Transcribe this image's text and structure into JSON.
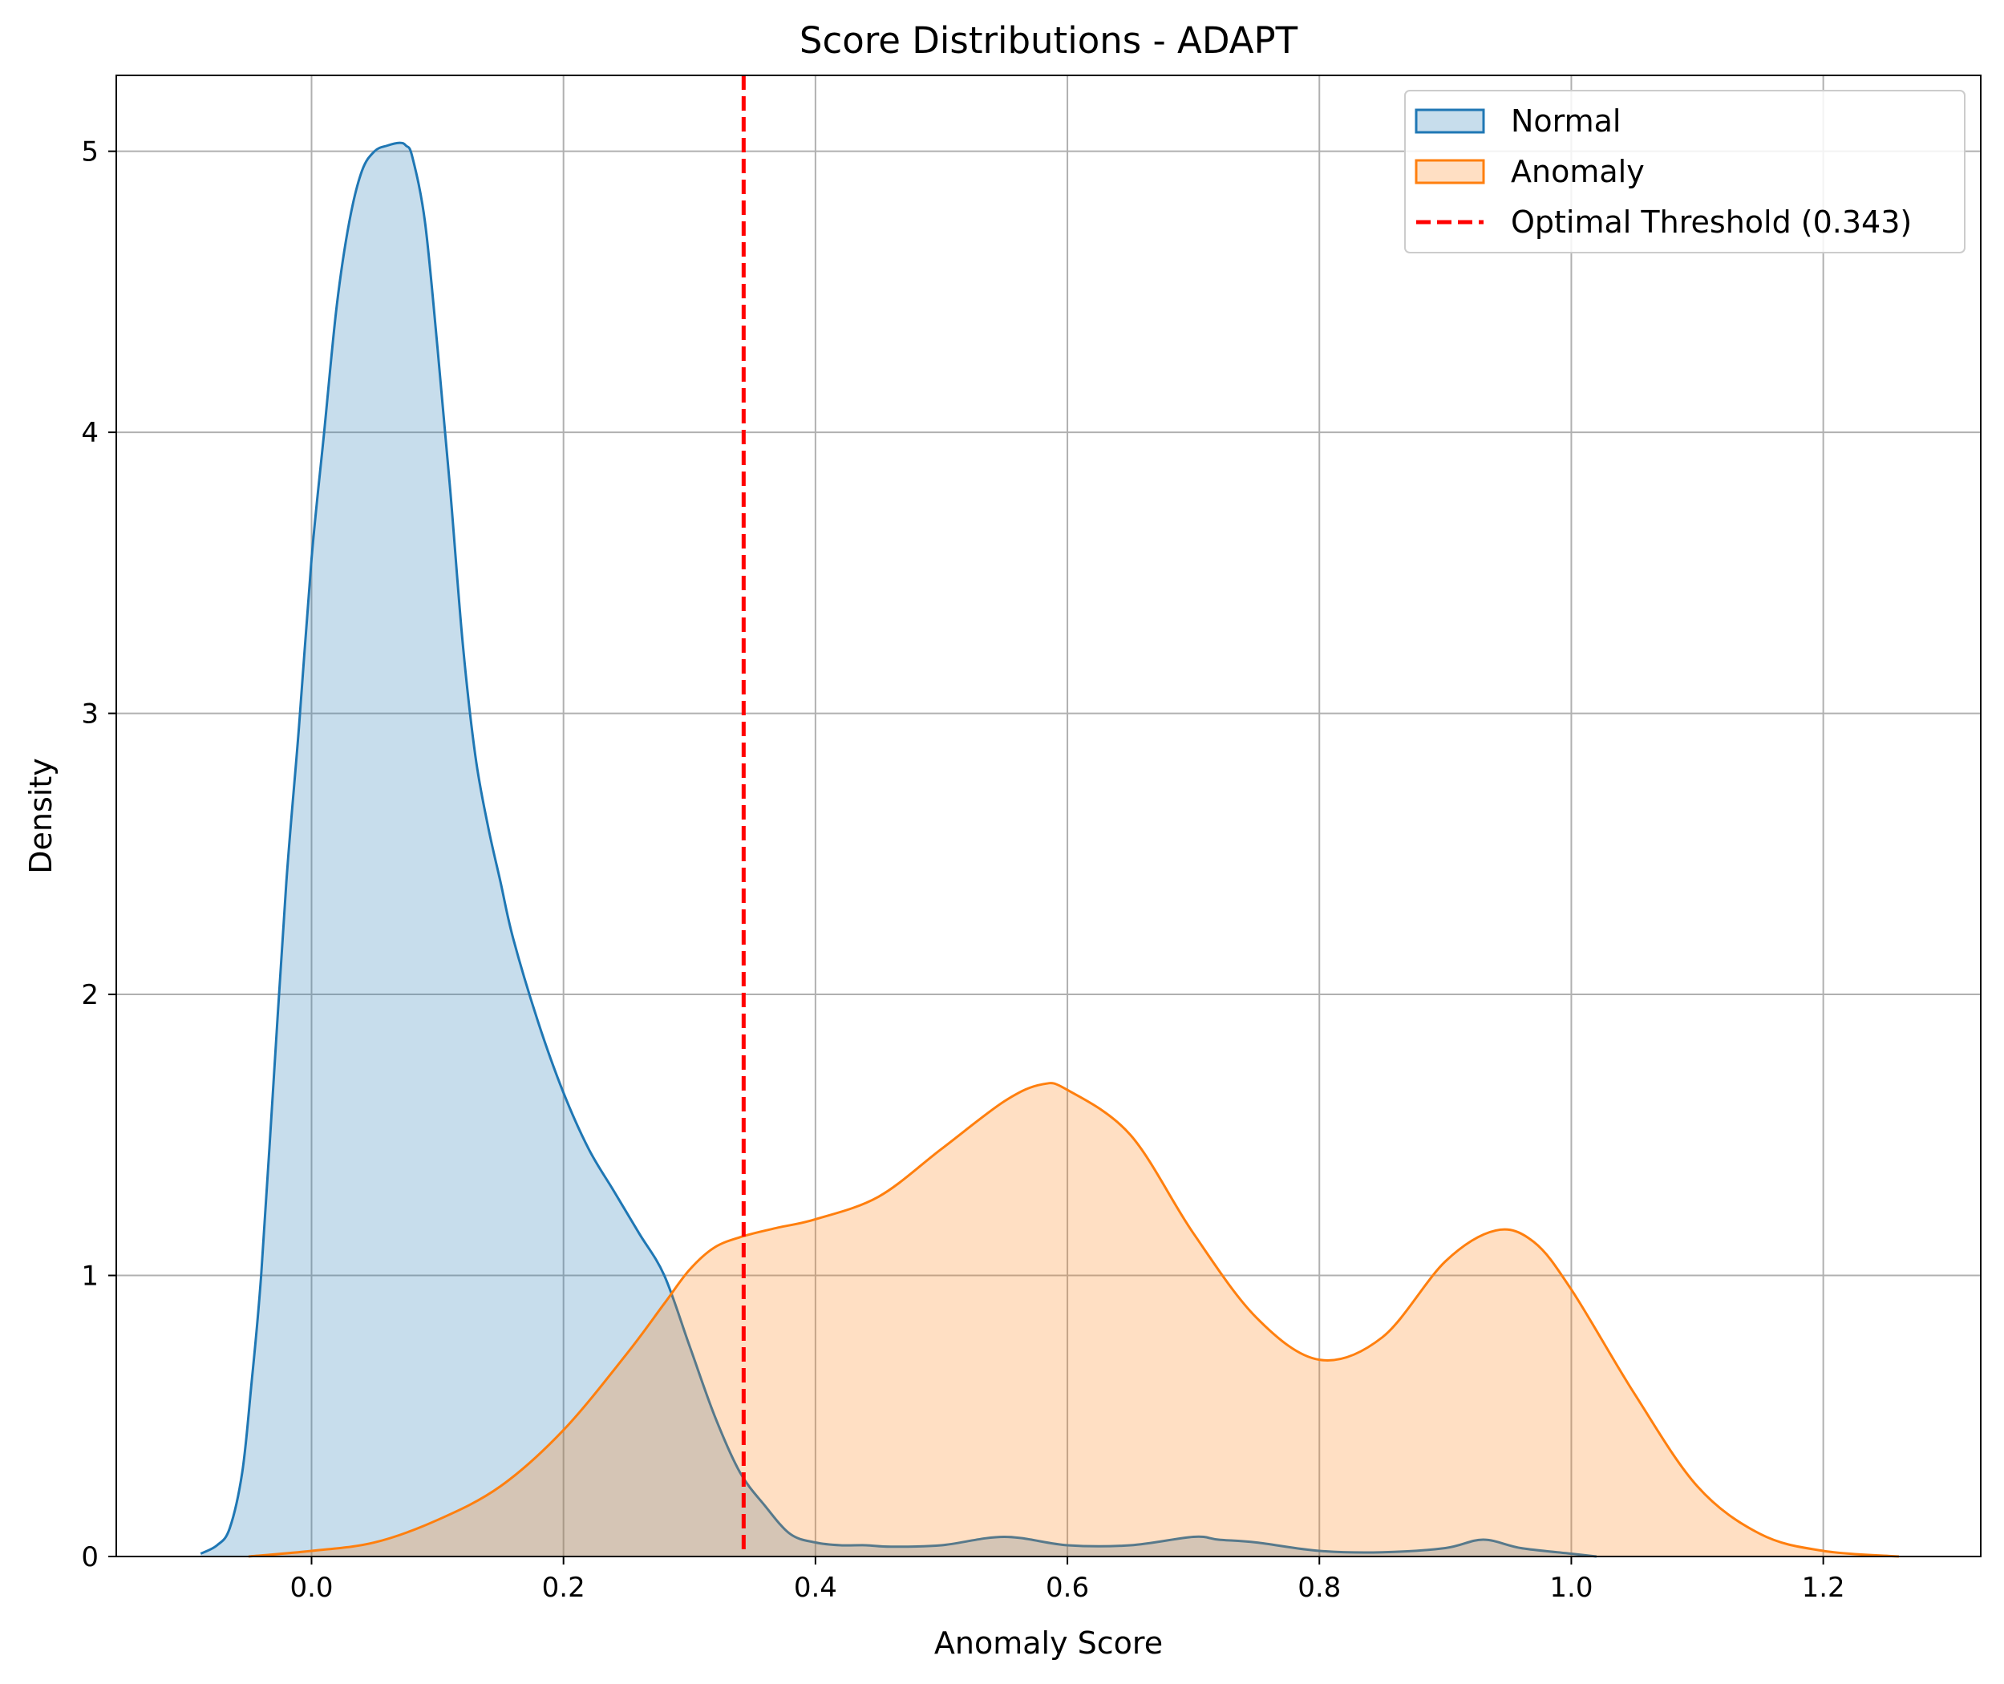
{
  "chart_data": {
    "type": "area",
    "title": "Score Distributions - ADAPT",
    "xlabel": "Anomaly Score",
    "ylabel": "Density",
    "xlim": [
      -0.155,
      1.325
    ],
    "ylim": [
      0,
      5.27
    ],
    "xticks": [
      0.0,
      0.2,
      0.4,
      0.6,
      0.8,
      1.0,
      1.2
    ],
    "xtick_labels": [
      "0.0",
      "0.2",
      "0.4",
      "0.6",
      "0.8",
      "1.0",
      "1.2"
    ],
    "yticks": [
      0,
      1,
      2,
      3,
      4,
      5
    ],
    "ytick_labels": [
      "0",
      "1",
      "2",
      "3",
      "4",
      "5"
    ],
    "grid": true,
    "legend_position": "top-right",
    "series": [
      {
        "name": "Normal",
        "color": "#1f77b4",
        "fill_opacity": 0.25,
        "x": [
          -0.088,
          -0.075,
          -0.065,
          -0.055,
          -0.048,
          -0.04,
          -0.03,
          -0.02,
          -0.01,
          0.0,
          0.01,
          0.02,
          0.03,
          0.04,
          0.05,
          0.06,
          0.07,
          0.075,
          0.08,
          0.09,
          0.1,
          0.11,
          0.12,
          0.13,
          0.14,
          0.15,
          0.16,
          0.18,
          0.2,
          0.22,
          0.24,
          0.26,
          0.28,
          0.3,
          0.32,
          0.34,
          0.36,
          0.38,
          0.4,
          0.42,
          0.44,
          0.46,
          0.5,
          0.55,
          0.6,
          0.65,
          0.7,
          0.72,
          0.75,
          0.8,
          0.85,
          0.9,
          0.93,
          0.96,
          1.0,
          1.02
        ],
        "y": [
          0.01,
          0.04,
          0.1,
          0.3,
          0.6,
          1.0,
          1.7,
          2.4,
          2.95,
          3.55,
          4.0,
          4.45,
          4.75,
          4.93,
          5.0,
          5.02,
          5.03,
          5.02,
          4.98,
          4.75,
          4.3,
          3.8,
          3.25,
          2.85,
          2.6,
          2.4,
          2.2,
          1.9,
          1.65,
          1.45,
          1.3,
          1.15,
          1.0,
          0.75,
          0.5,
          0.3,
          0.18,
          0.08,
          0.05,
          0.04,
          0.04,
          0.035,
          0.04,
          0.07,
          0.04,
          0.04,
          0.07,
          0.06,
          0.05,
          0.02,
          0.015,
          0.03,
          0.06,
          0.03,
          0.01,
          0.0
        ]
      },
      {
        "name": "Anomaly",
        "color": "#ff7f0e",
        "fill_opacity": 0.25,
        "x": [
          -0.05,
          0.0,
          0.05,
          0.1,
          0.15,
          0.2,
          0.25,
          0.28,
          0.3,
          0.32,
          0.343,
          0.37,
          0.4,
          0.45,
          0.5,
          0.55,
          0.58,
          0.6,
          0.65,
          0.7,
          0.75,
          0.8,
          0.85,
          0.9,
          0.94,
          0.97,
          1.0,
          1.05,
          1.1,
          1.15,
          1.2,
          1.26
        ],
        "y": [
          0.0,
          0.02,
          0.05,
          0.13,
          0.25,
          0.45,
          0.72,
          0.9,
          1.02,
          1.1,
          1.14,
          1.17,
          1.2,
          1.28,
          1.45,
          1.62,
          1.68,
          1.66,
          1.5,
          1.15,
          0.85,
          0.7,
          0.78,
          1.05,
          1.16,
          1.12,
          0.95,
          0.58,
          0.25,
          0.08,
          0.02,
          0.0
        ]
      }
    ],
    "threshold": {
      "label": "Optimal Threshold (0.343)",
      "x": 0.343,
      "color": "#ff0000"
    }
  }
}
